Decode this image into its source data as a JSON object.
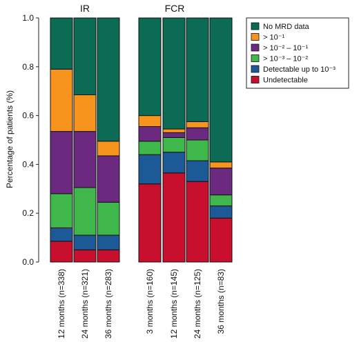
{
  "chart_data": {
    "type": "bar",
    "stacked": true,
    "ylabel": "Percentage of patients (%)",
    "ylim": [
      0,
      1.0
    ],
    "yticks": [
      "0.0",
      "0.2",
      "0.4",
      "0.6",
      "0.8",
      "1.0"
    ],
    "groups": [
      {
        "label": "IR",
        "categories": [
          "12 months (n=338)",
          "24 months (n=321)",
          "36 months (n=283)"
        ]
      },
      {
        "label": "FCR",
        "categories": [
          "3 months (n=160)",
          "12 months (n=145)",
          "24 months (n=125)",
          "36 months (n=83)"
        ]
      }
    ],
    "categories": [
      "12 months (n=338)",
      "24 months (n=321)",
      "36 months (n=283)",
      "3 months (n=160)",
      "12 months (n=145)",
      "24 months (n=125)",
      "36 months (n=83)"
    ],
    "series": [
      {
        "name": "Undetectable",
        "color": "#c8102e",
        "values": [
          0.085,
          0.05,
          0.05,
          0.32,
          0.365,
          0.33,
          0.18
        ]
      },
      {
        "name": "Detectable up to 10⁻³",
        "color": "#1b5a96",
        "values": [
          0.055,
          0.06,
          0.06,
          0.12,
          0.085,
          0.085,
          0.05
        ]
      },
      {
        "name": "> 10⁻³ – 10⁻²",
        "color": "#3fb74a",
        "values": [
          0.14,
          0.195,
          0.135,
          0.055,
          0.06,
          0.085,
          0.045
        ]
      },
      {
        "name": "> 10⁻² – 10⁻¹",
        "color": "#6b2a80",
        "values": [
          0.255,
          0.23,
          0.19,
          0.06,
          0.02,
          0.05,
          0.11
        ]
      },
      {
        "name": "> 10⁻¹",
        "color": "#f7941d",
        "values": [
          0.255,
          0.15,
          0.06,
          0.045,
          0.015,
          0.025,
          0.025
        ]
      },
      {
        "name": "No MRD data",
        "color": "#0b6b54",
        "values": [
          0.21,
          0.315,
          0.505,
          0.4,
          0.455,
          0.425,
          0.59
        ]
      }
    ],
    "legend": {
      "position": "right",
      "entries": [
        "No MRD data",
        "> 10⁻¹",
        "> 10⁻² – 10⁻¹",
        "> 10⁻³ – 10⁻²",
        "Detectable up to 10⁻³",
        "Undetectable"
      ]
    },
    "grid": false
  }
}
